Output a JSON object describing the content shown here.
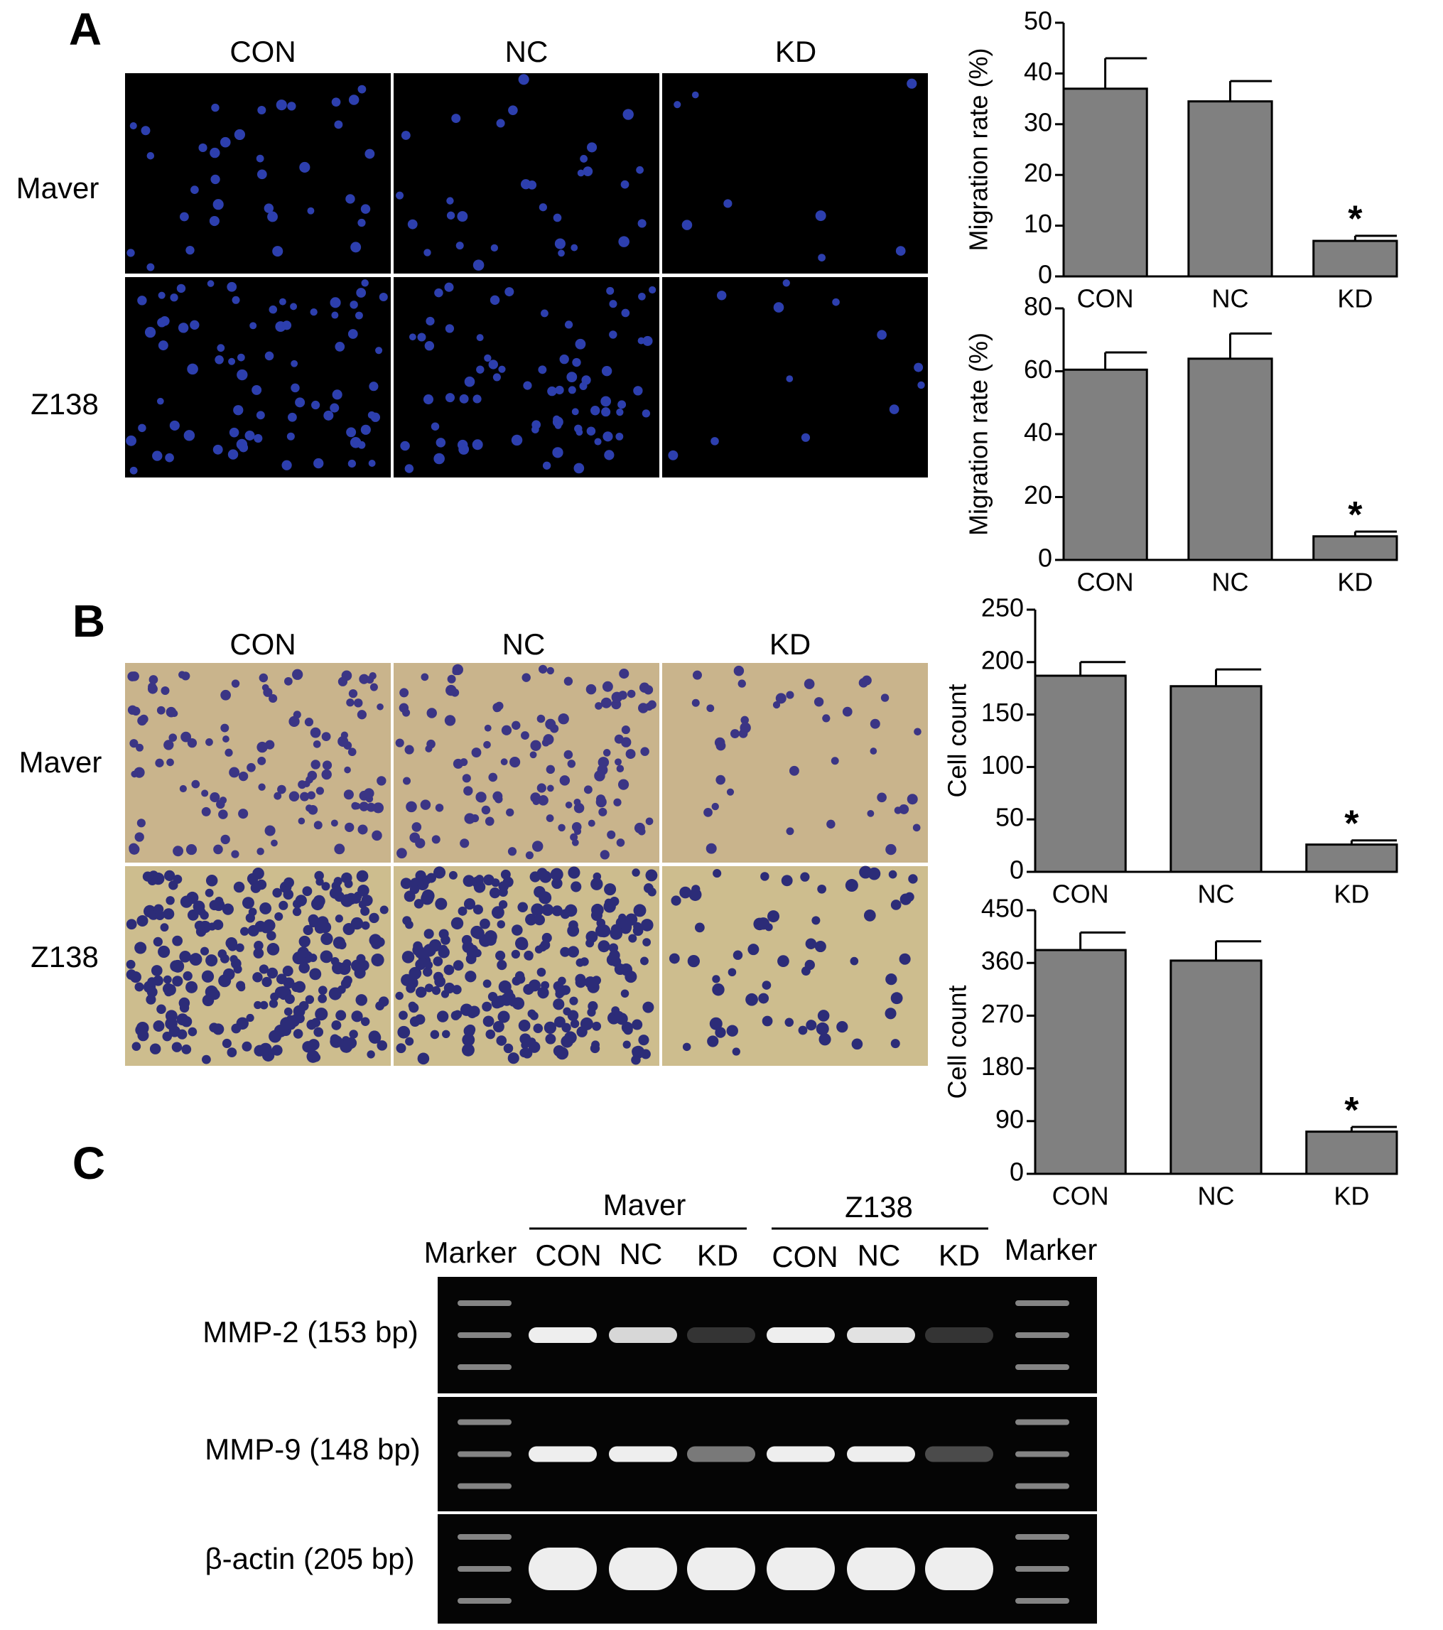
{
  "panels": {
    "a": "A",
    "b": "B",
    "c": "C"
  },
  "panel_a": {
    "columns": [
      "CON",
      "NC",
      "KD"
    ],
    "rows": [
      "Maver",
      "Z138"
    ]
  },
  "panel_b": {
    "columns": [
      "CON",
      "NC",
      "KD"
    ],
    "rows": [
      "Maver",
      "Z138"
    ]
  },
  "panel_c": {
    "groups": [
      "Maver",
      "Z138"
    ],
    "lanes": [
      "Marker",
      "CON",
      "NC",
      "KD",
      "CON",
      "NC",
      "KD",
      "Marker"
    ],
    "rows": [
      "MMP-2 (153 bp)",
      "MMP-9 (148 bp)",
      "β-actin (205 bp)"
    ]
  },
  "chart_data": [
    {
      "type": "bar",
      "y_label": "Migration rate (%)",
      "categories": [
        "CON",
        "NC",
        "KD"
      ],
      "values": [
        37,
        34.5,
        7
      ],
      "errors": [
        6,
        4,
        1
      ],
      "significance": [
        null,
        null,
        "*"
      ],
      "color": "#808080",
      "ylim": [
        0,
        50
      ],
      "yticks": [
        0,
        10,
        20,
        30,
        40,
        50
      ]
    },
    {
      "type": "bar",
      "y_label": "Migration rate (%)",
      "categories": [
        "CON",
        "NC",
        "KD"
      ],
      "values": [
        60.5,
        64,
        7.5
      ],
      "errors": [
        5.5,
        8,
        1.5
      ],
      "significance": [
        null,
        null,
        "*"
      ],
      "color": "#808080",
      "ylim": [
        0,
        80
      ],
      "yticks": [
        0,
        20,
        40,
        60,
        80
      ]
    },
    {
      "type": "bar",
      "y_label": "Cell count",
      "categories": [
        "CON",
        "NC",
        "KD"
      ],
      "values": [
        187,
        177,
        26
      ],
      "errors": [
        13,
        16,
        4
      ],
      "significance": [
        null,
        null,
        "*"
      ],
      "color": "#808080",
      "ylim": [
        0,
        250
      ],
      "yticks": [
        0,
        50,
        100,
        150,
        200,
        250
      ]
    },
    {
      "type": "bar",
      "y_label": "Cell count",
      "categories": [
        "CON",
        "NC",
        "KD"
      ],
      "values": [
        382,
        364,
        72
      ],
      "errors": [
        30,
        33,
        8
      ],
      "significance": [
        null,
        null,
        "*"
      ],
      "color": "#808080",
      "ylim": [
        0,
        450
      ],
      "yticks": [
        0,
        90,
        180,
        270,
        360,
        450
      ]
    }
  ]
}
